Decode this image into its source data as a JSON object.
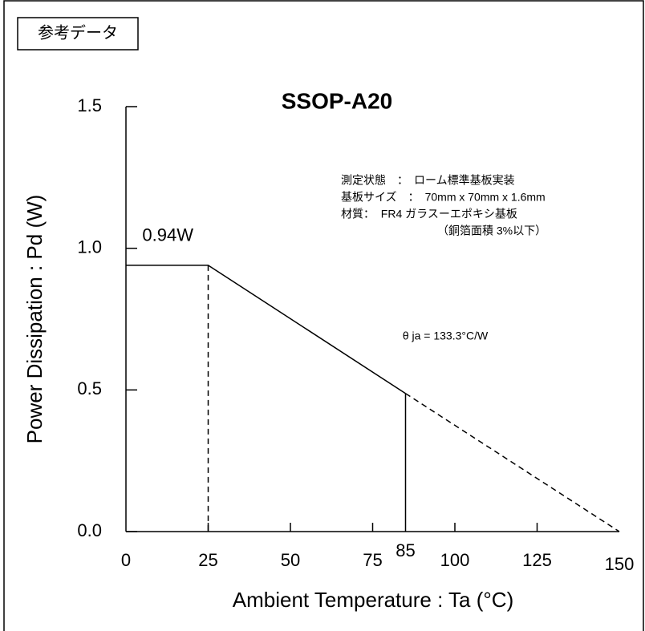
{
  "badge": "参考データ",
  "chart_data": {
    "type": "line",
    "title": "SSOP-A20",
    "xlabel": "Ambient Temperature : Ta (°C)",
    "ylabel": "Power Dissipation : Pd (W)",
    "xlim": [
      0,
      150
    ],
    "ylim": [
      0,
      1.5
    ],
    "xticks": [
      0,
      25,
      50,
      75,
      100,
      125,
      150
    ],
    "yticks": [
      {
        "value": 0,
        "label": "0.0"
      },
      0.5,
      {
        "value": 1,
        "label": "1.0"
      },
      1.5
    ],
    "color": "#000000",
    "series": [
      {
        "x": [
          0,
          25,
          85
        ],
        "values": [
          0.94,
          0.94,
          0.4876
        ],
        "style": "solid"
      },
      {
        "x": [
          85,
          150
        ],
        "values": [
          0.4876,
          0
        ],
        "style": "dashed"
      }
    ],
    "marker_x": 85,
    "annotations": [
      {
        "text": "0.94W",
        "x": 12,
        "y": 0.94
      },
      {
        "text": "θ ja = 133.3°C/W",
        "x": 100,
        "y": 0.7
      }
    ],
    "conditions": [
      "測定状態　：　ローム標準基板実装",
      "基板サイズ　：　70mm x 70mm x 1.6mm",
      "材質：  FR4 ガラスーエポキシ基板",
      "（銅箔面積 3%以下）"
    ]
  }
}
